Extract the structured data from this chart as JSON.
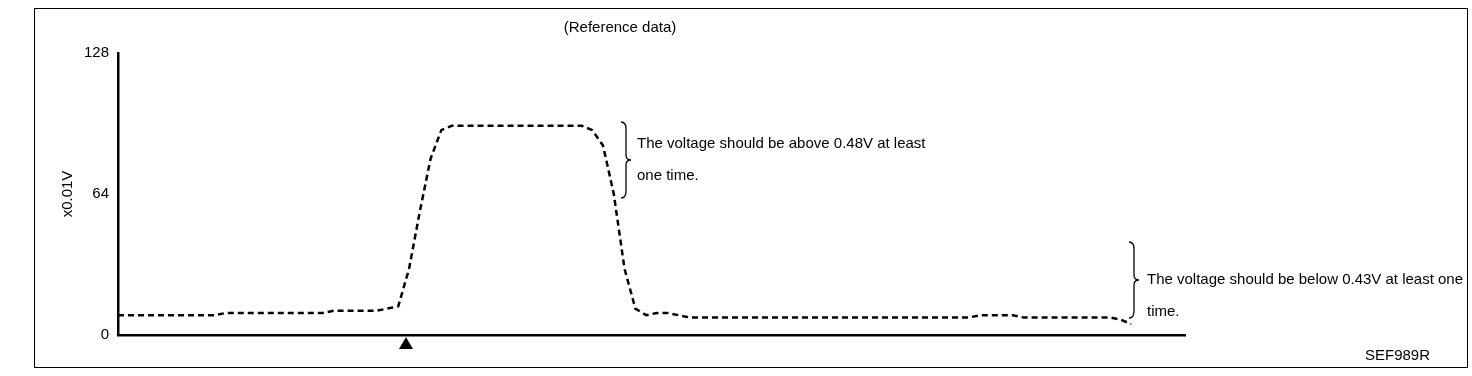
{
  "chart_data": {
    "type": "line",
    "title": "(Reference data)",
    "ylabel": "x0.01V",
    "categories": [
      null,
      null,
      null,
      null,
      null,
      null,
      null,
      null,
      null,
      null,
      null,
      null,
      null,
      null,
      null,
      null,
      null,
      null,
      null,
      null,
      null,
      null,
      null,
      null,
      null,
      null,
      null,
      null,
      null,
      null,
      null,
      null,
      null,
      null,
      null,
      null,
      null,
      null,
      null,
      null,
      null,
      null,
      null,
      null,
      null,
      null,
      null,
      null,
      null,
      null,
      null,
      null,
      null,
      null,
      null,
      null,
      null,
      null,
      null,
      null,
      null,
      null,
      null,
      null,
      null,
      null,
      null,
      null,
      null,
      null,
      null,
      null,
      null,
      null,
      null,
      null,
      null,
      null,
      null,
      null,
      null,
      null,
      null,
      null,
      null,
      null,
      null,
      null,
      null,
      null,
      null,
      null,
      null,
      null,
      null,
      null,
      null,
      null,
      null,
      null
    ],
    "series": [
      {
        "color": "#000000",
        "values": [
          9,
          9,
          9,
          9,
          9,
          9,
          9,
          9,
          9,
          9,
          10,
          10,
          10,
          10,
          10,
          10,
          10,
          10,
          10,
          10,
          11,
          11,
          11,
          11,
          11,
          12,
          13,
          30,
          56,
          80,
          93,
          95,
          95,
          95,
          95,
          95,
          95,
          95,
          95,
          95,
          95,
          95,
          95,
          95,
          93,
          86,
          64,
          30,
          12,
          9,
          10,
          10,
          9,
          8,
          8,
          8,
          8,
          8,
          8,
          8,
          8,
          8,
          8,
          8,
          8,
          8,
          8,
          8,
          8,
          8,
          8,
          8,
          8,
          8,
          8,
          8,
          8,
          8,
          8,
          8,
          9,
          9,
          9,
          9,
          8,
          8,
          8,
          8,
          8,
          8,
          8,
          8,
          8,
          7,
          5,
          null,
          null,
          null,
          null,
          null
        ]
      }
    ],
    "ylim": [
      0,
      128
    ],
    "yticks": [
      0,
      64,
      128
    ],
    "grid": false,
    "legend": false,
    "tick_labels": "y",
    "line_style": "dashed",
    "marker": "none",
    "annotations": [
      "The voltage should be above 0.48V at least one time.",
      "The voltage should be below 0.43V at least one time.",
      "SEF989R"
    ]
  }
}
